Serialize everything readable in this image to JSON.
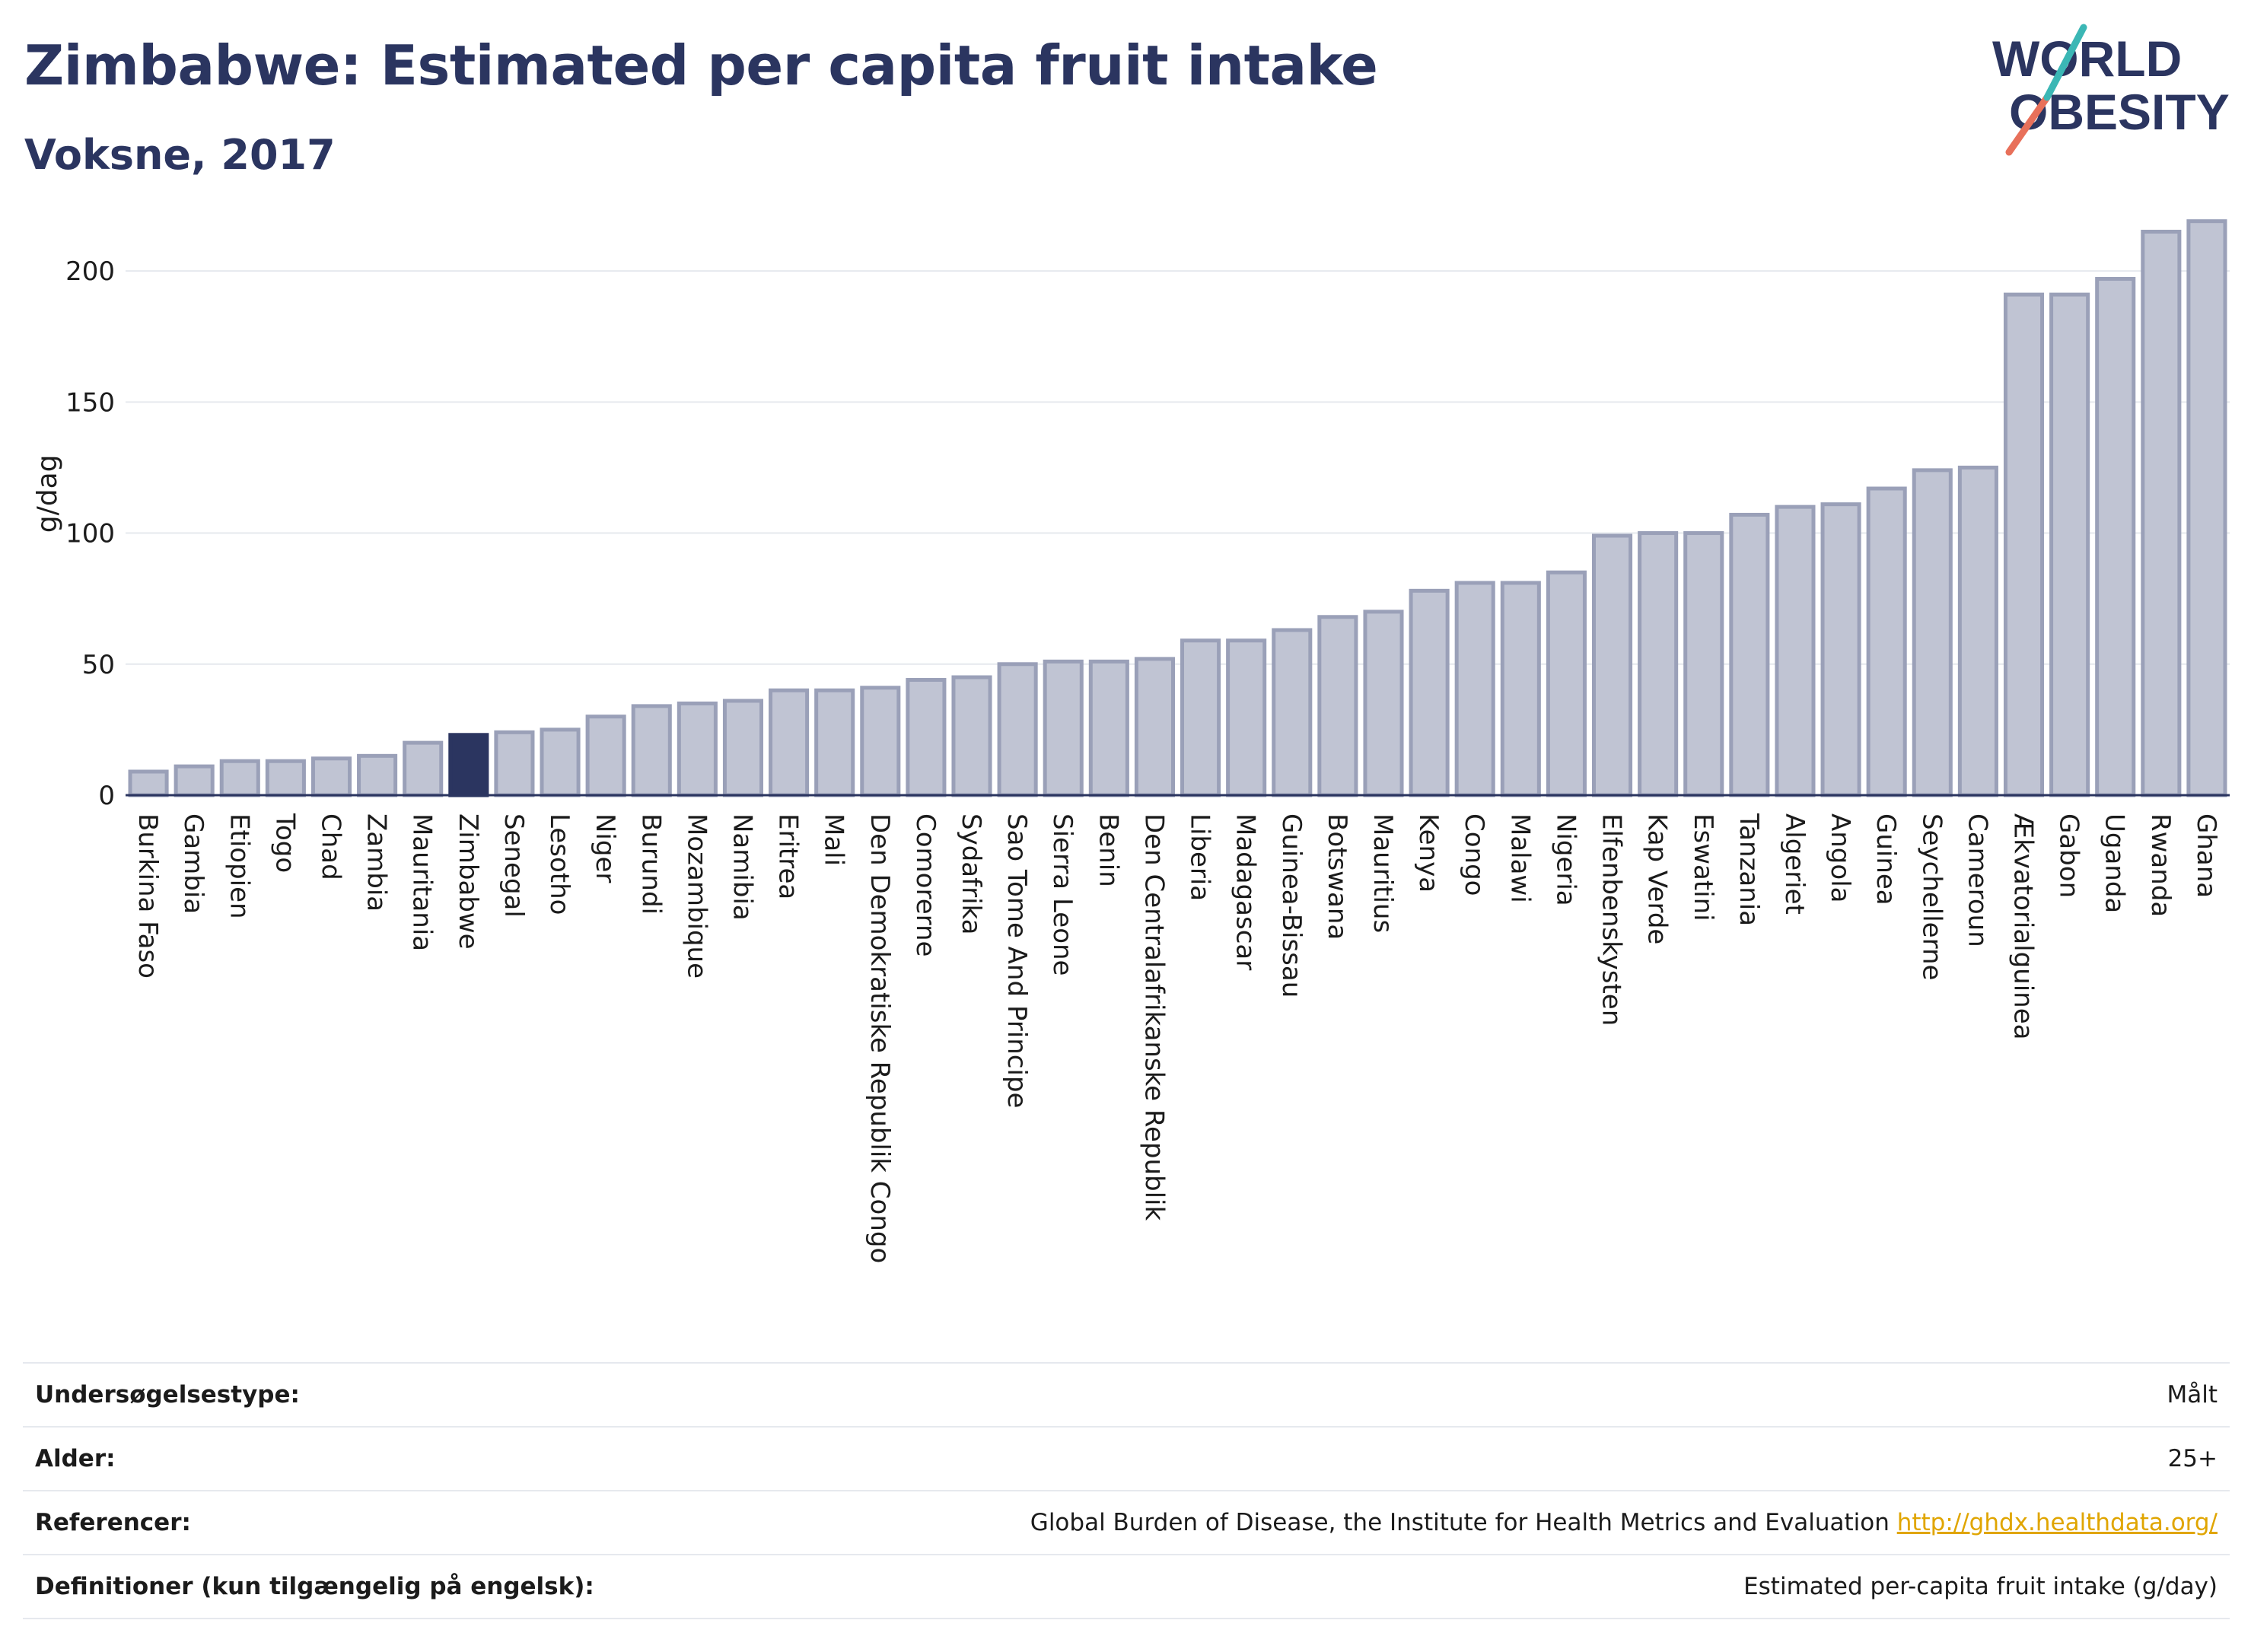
{
  "header": {
    "title": "Zimbabwe: Estimated per capita fruit intake",
    "subtitle": "Voksne, 2017"
  },
  "logo": {
    "line1": "WORLD",
    "line2": "OBESITY"
  },
  "colors": {
    "bar": "#c0c4d3",
    "bar_stroke": "#9aa0b8",
    "highlight": "#2b3560",
    "title": "#2b3560"
  },
  "chart_data": {
    "type": "bar",
    "ylabel": "g/dag",
    "ylim": [
      0,
      225
    ],
    "yticks": [
      0,
      50,
      100,
      150,
      200
    ],
    "grid": true,
    "highlight": "Zimbabwe",
    "categories": [
      "Burkina Faso",
      "Gambia",
      "Etiopien",
      "Togo",
      "Chad",
      "Zambia",
      "Mauritania",
      "Zimbabwe",
      "Senegal",
      "Lesotho",
      "Niger",
      "Burundi",
      "Mozambique",
      "Namibia",
      "Eritrea",
      "Mali",
      "Den Demokratiske Republik Congo",
      "Comorerne",
      "Sydafrika",
      "Sao Tome And Principe",
      "Sierra Leone",
      "Benin",
      "Den Centralafrikanske Republik",
      "Liberia",
      "Madagascar",
      "Guinea-Bissau",
      "Botswana",
      "Mauritius",
      "Kenya",
      "Congo",
      "Malawi",
      "Nigeria",
      "Elfenbenskysten",
      "Kap Verde",
      "Eswatini",
      "Tanzania",
      "Algeriet",
      "Angola",
      "Guinea",
      "Seychellerne",
      "Cameroun",
      "Ækvatorialguinea",
      "Gabon",
      "Uganda",
      "Rwanda",
      "Ghana"
    ],
    "values": [
      9,
      11,
      13,
      13,
      14,
      15,
      20,
      23,
      24,
      25,
      30,
      34,
      35,
      36,
      40,
      40,
      41,
      44,
      45,
      50,
      51,
      51,
      52,
      59,
      59,
      63,
      68,
      70,
      78,
      81,
      81,
      85,
      99,
      100,
      100,
      107,
      110,
      111,
      117,
      124,
      125,
      191,
      191,
      197,
      215,
      219
    ]
  },
  "info": [
    {
      "label": "Undersøgelsestype:",
      "value": "Målt"
    },
    {
      "label": "Alder:",
      "value": "25+"
    },
    {
      "label": "Referencer:",
      "value": "Global Burden of Disease, the Institute for Health Metrics and Evaluation",
      "link": "http://ghdx.healthdata.org/"
    },
    {
      "label": "Definitioner (kun tilgængelig på engelsk):",
      "value": "Estimated per-capita fruit intake (g/day)"
    }
  ]
}
